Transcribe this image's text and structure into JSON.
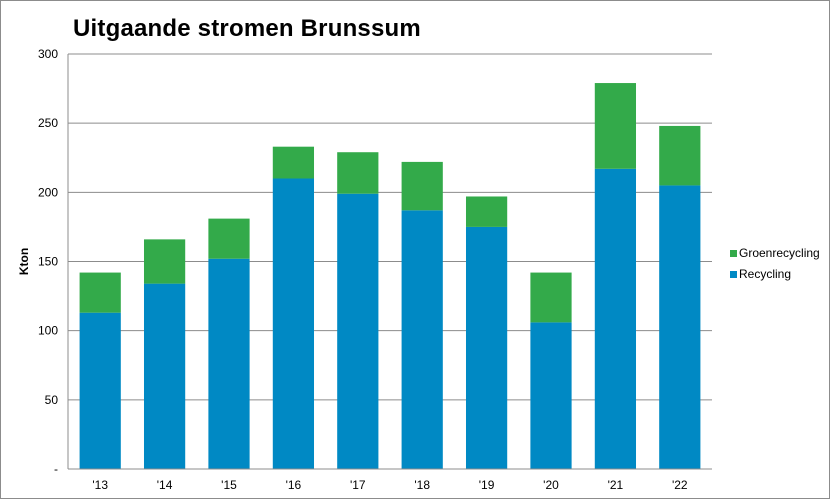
{
  "chart_data": {
    "type": "bar",
    "stacked": true,
    "title": "Uitgaande stromen Brunssum",
    "xlabel": "",
    "ylabel": "Kton",
    "categories": [
      "'13",
      "'14",
      "'15",
      "'16",
      "'17",
      "'18",
      "'19",
      "'20",
      "'21",
      "'22"
    ],
    "series": [
      {
        "name": "Recycling",
        "color": "#0089C4",
        "values": [
          113,
          134,
          152,
          210,
          199,
          187,
          175,
          106,
          217,
          205
        ]
      },
      {
        "name": "Groenrecycling",
        "color": "#33AA4A",
        "values": [
          29,
          32,
          29,
          23,
          30,
          35,
          22,
          36,
          62,
          43
        ]
      }
    ],
    "ylim": [
      0,
      300
    ],
    "yticks": [
      0,
      50,
      100,
      150,
      200,
      250,
      300
    ],
    "ytick_labels": [
      "-",
      "50",
      "100",
      "150",
      "200",
      "250",
      "300"
    ],
    "grid": true,
    "legend_position": "right",
    "legend_order": [
      "Groenrecycling",
      "Recycling"
    ]
  }
}
